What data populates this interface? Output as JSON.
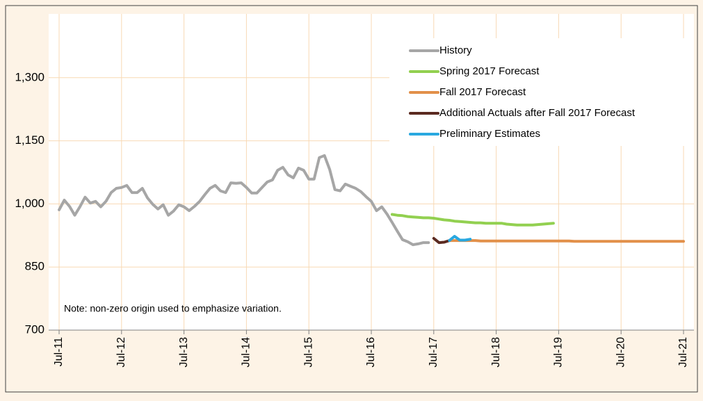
{
  "chart_data": {
    "type": "line",
    "note": "Note: non-zero origin used to emphasize variation.",
    "xlim": [
      "2011-07",
      "2021-07"
    ],
    "xticks": [
      {
        "value": "2011-07",
        "label": "Jul-11"
      },
      {
        "value": "2012-07",
        "label": "Jul-12"
      },
      {
        "value": "2013-07",
        "label": "Jul-13"
      },
      {
        "value": "2014-07",
        "label": "Jul-14"
      },
      {
        "value": "2015-07",
        "label": "Jul-15"
      },
      {
        "value": "2016-07",
        "label": "Jul-16"
      },
      {
        "value": "2017-07",
        "label": "Jul-17"
      },
      {
        "value": "2018-07",
        "label": "Jul-18"
      },
      {
        "value": "2019-07",
        "label": "Jul-19"
      },
      {
        "value": "2020-07",
        "label": "Jul-20"
      },
      {
        "value": "2021-07",
        "label": "Jul-21"
      }
    ],
    "ylim": [
      700,
      1450
    ],
    "yticks": [
      700,
      850,
      {
        "value": 1000,
        "label": "1,000"
      },
      {
        "value": 1150,
        "label": "1,150"
      },
      {
        "value": 1300,
        "label": "1,300"
      }
    ],
    "grid": true,
    "legend": "upper right",
    "series": [
      {
        "name": "History",
        "color": "#a6a6a6",
        "start": "2011-07",
        "values": [
          986,
          1009,
          994,
          973,
          993,
          1016,
          1002,
          1006,
          993,
          1006,
          1027,
          1037,
          1039,
          1044,
          1027,
          1027,
          1037,
          1014,
          999,
          988,
          998,
          973,
          983,
          998,
          993,
          984,
          994,
          1006,
          1022,
          1037,
          1044,
          1031,
          1027,
          1050,
          1049,
          1050,
          1039,
          1026,
          1026,
          1039,
          1052,
          1057,
          1080,
          1087,
          1069,
          1062,
          1085,
          1080,
          1059,
          1059,
          1110,
          1115,
          1082,
          1034,
          1031,
          1047,
          1042,
          1037,
          1029,
          1017,
          1006,
          984,
          993,
          976,
          956,
          935,
          915,
          910,
          903,
          905,
          908,
          908
        ]
      },
      {
        "name": "Spring 2017 Forecast",
        "color": "#92d050",
        "start": "2016-11",
        "values": [
          975,
          973,
          972,
          970,
          969,
          968,
          967,
          967,
          966,
          964,
          962,
          961,
          959,
          958,
          957,
          956,
          955,
          955,
          954,
          954,
          954,
          954,
          952,
          951,
          950,
          950,
          950,
          950,
          951,
          952,
          953,
          954
        ]
      },
      {
        "name": "Fall 2017 Forecast",
        "color": "#e2904a",
        "start": "2017-10",
        "values": [
          913,
          913,
          913,
          913,
          913,
          913,
          912,
          912,
          912,
          912,
          912,
          912,
          912,
          912,
          912,
          912,
          912,
          912,
          912,
          912,
          912,
          912,
          912,
          912,
          911,
          911,
          911,
          911,
          911,
          911,
          911,
          911,
          911,
          911,
          911,
          911,
          911,
          911,
          911,
          911,
          911,
          911,
          911,
          911,
          911,
          911
        ]
      },
      {
        "name": "Additional Actuals after Fall 2017 Forecast",
        "color": "#5b2a20",
        "start": "2017-07",
        "values": [
          918,
          908,
          909,
          913
        ]
      },
      {
        "name": "Preliminary Estimates",
        "color": "#29a8e0",
        "start": "2017-10",
        "values": [
          913,
          923,
          914,
          914,
          916
        ]
      }
    ]
  }
}
